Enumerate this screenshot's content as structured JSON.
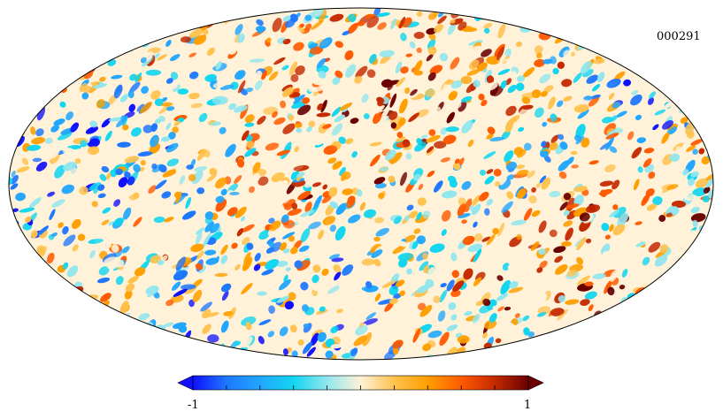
{
  "map": {
    "id_label": "000291",
    "projection": "mollweide",
    "background": "#ffffff",
    "outline_color": "#000000"
  },
  "colorbar": {
    "min_label": "-1",
    "max_label": "1",
    "min": -1,
    "max": 1,
    "colors": [
      "#1010ff",
      "#1e78ff",
      "#22a6ff",
      "#12d5f0",
      "#92e6ee",
      "#fff2d8",
      "#ffc24f",
      "#ff9f00",
      "#ff5a00",
      "#c42a00",
      "#6a0000"
    ]
  }
}
